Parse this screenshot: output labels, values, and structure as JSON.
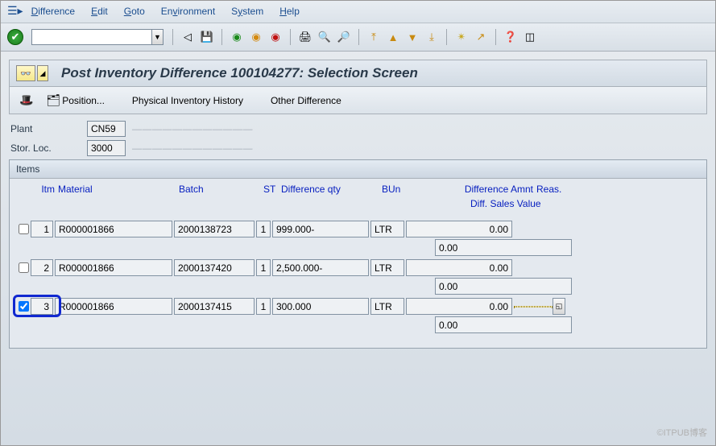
{
  "menu": {
    "difference": "Difference",
    "edit": "Edit",
    "goto": "Goto",
    "environment": "Environment",
    "system": "System",
    "help": "Help"
  },
  "title": "Post Inventory Difference 100104277: Selection Screen",
  "appToolbar": {
    "position": "Position...",
    "history": "Physical Inventory History",
    "other": "Other Difference"
  },
  "form": {
    "plant_label": "Plant",
    "plant_value": "CN59",
    "plant_desc": "————————————",
    "storloc_label": "Stor. Loc.",
    "storloc_value": "3000",
    "storloc_desc": "————————————"
  },
  "items": {
    "panel_title": "Items",
    "headers": {
      "itm": "Itm",
      "material": "Material",
      "batch": "Batch",
      "st": "ST",
      "diffqty": "Difference qty",
      "bun": "BUn",
      "diffamnt": "Difference Amnt",
      "reas": "Reas.",
      "sales": "Diff. Sales Value"
    },
    "rows": [
      {
        "checked": false,
        "itm": "1",
        "material": "R000001866",
        "batch": "2000138723",
        "st": "1",
        "diffqty": "999.000-",
        "bun": "LTR",
        "amnt": "0.00",
        "sales": "0.00"
      },
      {
        "checked": false,
        "itm": "2",
        "material": "R000001866",
        "batch": "2000137420",
        "st": "1",
        "diffqty": "2,500.000-",
        "bun": "LTR",
        "amnt": "0.00",
        "sales": "0.00"
      },
      {
        "checked": true,
        "itm": "3",
        "material": "R000001866",
        "batch": "2000137415",
        "st": "1",
        "diffqty": "300.000",
        "bun": "LTR",
        "amnt": "0.00",
        "sales": "0.00"
      }
    ]
  },
  "watermark": "©ITPUB博客"
}
